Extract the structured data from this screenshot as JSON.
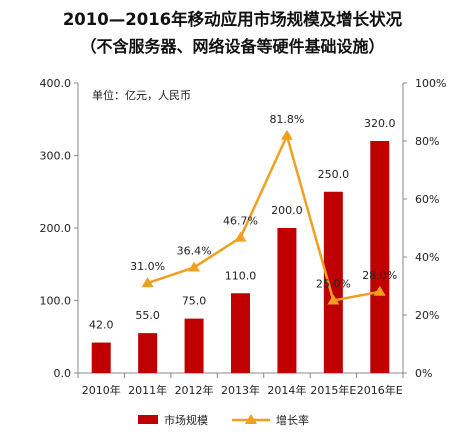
{
  "chart_data": {
    "type": "bar",
    "title": "2010—2016年移动应用市场规模及增长状况",
    "subtitle": "（不含服务器、网络设备等硬件基础设施）",
    "unit_note": "单位：亿元，人民币",
    "categories": [
      "2010年",
      "2011年",
      "2012年",
      "2013年",
      "2014年",
      "2015年E",
      "2016年E"
    ],
    "series": [
      {
        "name": "市场规模",
        "type": "bar",
        "axis": "left",
        "color": "#c00000",
        "values": [
          42.0,
          55.0,
          75.0,
          110.0,
          200.0,
          250.0,
          320.0
        ],
        "labels": [
          "42.0",
          "55.0",
          "75.0",
          "110.0",
          "200.0",
          "250.0",
          "320.0"
        ]
      },
      {
        "name": "增长率",
        "type": "line",
        "axis": "right",
        "color": "#f0a020",
        "values": [
          null,
          31.0,
          36.4,
          46.7,
          81.8,
          25.0,
          28.0
        ],
        "labels": [
          "",
          "31.0%",
          "36.4%",
          "46.7%",
          "81.8%",
          "25.0%",
          "28.0%"
        ]
      }
    ],
    "y_left": {
      "min": 0,
      "max": 400,
      "ticks": [
        "0.0",
        "100.0",
        "200.0",
        "300.0",
        "400.0"
      ]
    },
    "y_right": {
      "min": 0,
      "max": 100,
      "ticks": [
        "0%",
        "20%",
        "40%",
        "60%",
        "80%",
        "100%"
      ]
    },
    "grid": false,
    "legend_position": "bottom"
  }
}
